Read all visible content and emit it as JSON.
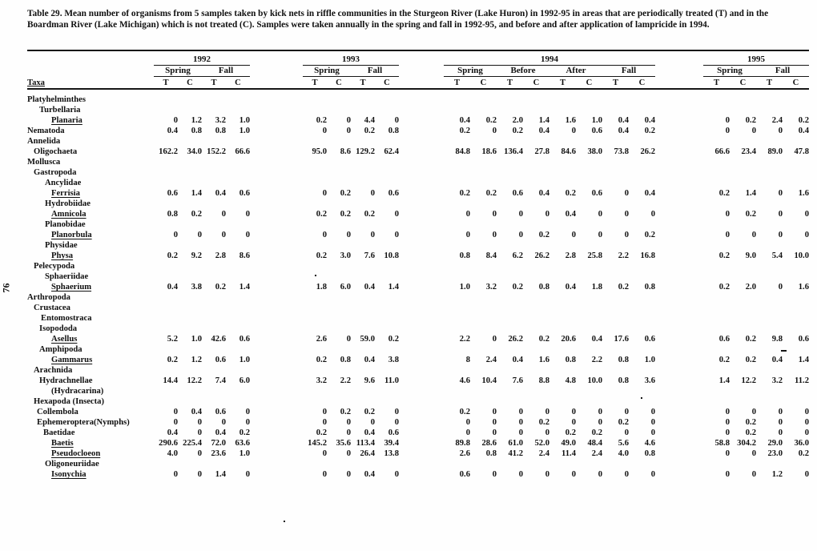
{
  "page_number": "76",
  "caption": {
    "line1": "Table 29.  Mean number of organisms from 5 samples taken by kick nets in riffle communities in the Sturgeon River (Lake Huron) in 1992-95 in areas that are periodically treated (T) and in the",
    "line2": "Boardman River (Lake Michigan) which is not treated (C).  Samples were taken annually in the spring and fall in 1992-95, and before and after application of lampricide in 1994."
  },
  "table": {
    "taxa_header": "Taxa",
    "treated_label": "T",
    "control_label": "C",
    "years": [
      {
        "label": "1992",
        "seasons": [
          "Spring",
          "Fall"
        ]
      },
      {
        "label": "1993",
        "seasons": [
          "Spring",
          "Fall"
        ]
      },
      {
        "label": "1994",
        "seasons": [
          "Spring",
          "Before",
          "After",
          "Fall"
        ]
      },
      {
        "label": "1995",
        "seasons": [
          "Spring",
          "Fall"
        ]
      }
    ],
    "rows": [
      {
        "label": "Platyhelminthes",
        "indent": 0,
        "underline": false,
        "values": null
      },
      {
        "label": "Turbellaria",
        "indent": 15,
        "underline": false,
        "values": null
      },
      {
        "label": "Planaria",
        "indent": 30,
        "underline": true,
        "values": [
          "0",
          "1.2",
          "3.2",
          "1.0",
          "0.2",
          "0",
          "4.4",
          "0",
          "0.4",
          "0.2",
          "2.0",
          "1.4",
          "1.6",
          "1.0",
          "0.4",
          "0.4",
          "0",
          "0.2",
          "2.4",
          "0.2"
        ]
      },
      {
        "label": "Nematoda",
        "indent": 0,
        "underline": false,
        "values": [
          "0.4",
          "0.8",
          "0.8",
          "1.0",
          "0",
          "0",
          "0.2",
          "0.8",
          "0.2",
          "0",
          "0.2",
          "0.4",
          "0",
          "0.6",
          "0.4",
          "0.2",
          "0",
          "0",
          "0",
          "0.4"
        ]
      },
      {
        "label": "Annelida",
        "indent": 0,
        "underline": false,
        "values": null
      },
      {
        "label": "Oligochaeta",
        "indent": 8,
        "underline": false,
        "values": [
          "162.2",
          "34.0",
          "152.2",
          "66.6",
          "95.0",
          "8.6",
          "129.2",
          "62.4",
          "84.8",
          "18.6",
          "136.4",
          "27.8",
          "84.6",
          "38.0",
          "73.8",
          "26.2",
          "66.6",
          "23.4",
          "89.0",
          "47.8"
        ]
      },
      {
        "label": "Mollusca",
        "indent": 0,
        "underline": false,
        "values": null
      },
      {
        "label": "Gastropoda",
        "indent": 8,
        "underline": false,
        "values": null
      },
      {
        "label": "Ancylidae",
        "indent": 22,
        "underline": false,
        "values": null
      },
      {
        "label": "Ferrisia",
        "indent": 30,
        "underline": true,
        "values": [
          "0.6",
          "1.4",
          "0.4",
          "0.6",
          "0",
          "0.2",
          "0",
          "0.6",
          "0.2",
          "0.2",
          "0.6",
          "0.4",
          "0.2",
          "0.6",
          "0",
          "0.4",
          "0.2",
          "1.4",
          "0",
          "1.6"
        ]
      },
      {
        "label": "Hydrobiidae",
        "indent": 22,
        "underline": false,
        "values": null
      },
      {
        "label": "Amnicola",
        "indent": 30,
        "underline": true,
        "values": [
          "0.8",
          "0.2",
          "0",
          "0",
          "0.2",
          "0.2",
          "0.2",
          "0",
          "0",
          "0",
          "0",
          "0",
          "0.4",
          "0",
          "0",
          "0",
          "0",
          "0.2",
          "0",
          "0"
        ]
      },
      {
        "label": "Planobidae",
        "indent": 22,
        "underline": false,
        "values": null
      },
      {
        "label": "Planorbula",
        "indent": 30,
        "underline": true,
        "values": [
          "0",
          "0",
          "0",
          "0",
          "0",
          "0",
          "0",
          "0",
          "0",
          "0",
          "0",
          "0.2",
          "0",
          "0",
          "0",
          "0.2",
          "0",
          "0",
          "0",
          "0"
        ]
      },
      {
        "label": "Physidae",
        "indent": 22,
        "underline": false,
        "values": null
      },
      {
        "label": "Physa",
        "indent": 30,
        "underline": true,
        "values": [
          "0.2",
          "9.2",
          "2.8",
          "8.6",
          "0.2",
          "3.0",
          "7.6",
          "10.8",
          "0.8",
          "8.4",
          "6.2",
          "26.2",
          "2.8",
          "25.8",
          "2.2",
          "16.8",
          "0.2",
          "9.0",
          "5.4",
          "10.0"
        ]
      },
      {
        "label": "Pelecypoda",
        "indent": 8,
        "underline": false,
        "values": null
      },
      {
        "label": "Sphaeriidae",
        "indent": 22,
        "underline": false,
        "values": null
      },
      {
        "label": "Sphaerium",
        "indent": 30,
        "underline": true,
        "values": [
          "0.4",
          "3.8",
          "0.2",
          "1.4",
          "1.8",
          "6.0",
          "0.4",
          "1.4",
          "1.0",
          "3.2",
          "0.2",
          "0.8",
          "0.4",
          "1.8",
          "0.2",
          "0.8",
          "0.2",
          "2.0",
          "0",
          "1.6"
        ]
      },
      {
        "label": "Arthropoda",
        "indent": 0,
        "underline": false,
        "values": null
      },
      {
        "label": "Crustacea",
        "indent": 8,
        "underline": false,
        "values": null
      },
      {
        "label": "Entomostraca",
        "indent": 17,
        "underline": false,
        "values": null
      },
      {
        "label": "Isopododa",
        "indent": 15,
        "underline": false,
        "values": null
      },
      {
        "label": "Asellus",
        "indent": 30,
        "underline": true,
        "values": [
          "5.2",
          "1.0",
          "42.6",
          "0.6",
          "2.6",
          "0",
          "59.0",
          "0.2",
          "2.2",
          "0",
          "26.2",
          "0.2",
          "20.6",
          "0.4",
          "17.6",
          "0.6",
          "0.6",
          "0.2",
          "9.8",
          "0.6"
        ]
      },
      {
        "label": "Amphipoda",
        "indent": 15,
        "underline": false,
        "values": null
      },
      {
        "label": "Gammarus",
        "indent": 30,
        "underline": true,
        "values": [
          "0.2",
          "1.2",
          "0.6",
          "1.0",
          "0.2",
          "0.8",
          "0.4",
          "3.8",
          "8",
          "2.4",
          "0.4",
          "1.6",
          "0.8",
          "2.2",
          "0.8",
          "1.0",
          "0.2",
          "0.2",
          "0.4",
          "1.4"
        ]
      },
      {
        "label": "Arachnida",
        "indent": 8,
        "underline": false,
        "values": null
      },
      {
        "label": "Hydrachnellae",
        "indent": 15,
        "underline": false,
        "values": [
          "14.4",
          "12.2",
          "7.4",
          "6.0",
          "3.2",
          "2.2",
          "9.6",
          "11.0",
          "4.6",
          "10.4",
          "7.6",
          "8.8",
          "4.8",
          "10.0",
          "0.8",
          "3.6",
          "1.4",
          "12.2",
          "3.2",
          "11.2"
        ]
      },
      {
        "label": "(Hydracarina)",
        "indent": 30,
        "underline": false,
        "values": null
      },
      {
        "label": "Hexapoda (Insecta)",
        "indent": 8,
        "underline": false,
        "values": null
      },
      {
        "label": "Collembola",
        "indent": 12,
        "underline": false,
        "values": [
          "0",
          "0.4",
          "0.6",
          "0",
          "0",
          "0.2",
          "0.2",
          "0",
          "0.2",
          "0",
          "0",
          "0",
          "0",
          "0",
          "0",
          "0",
          "0",
          "0",
          "0",
          "0"
        ]
      },
      {
        "label": "Ephemeroptera(Nymphs)",
        "indent": 12,
        "underline": false,
        "values": [
          "0",
          "0",
          "0",
          "0",
          "0",
          "0",
          "0",
          "0",
          "0",
          "0",
          "0",
          "0.2",
          "0",
          "0",
          "0.2",
          "0",
          "0",
          "0.2",
          "0",
          "0"
        ]
      },
      {
        "label": "Baetidae",
        "indent": 20,
        "underline": false,
        "values": [
          "0.4",
          "0",
          "0.4",
          "0.2",
          "0.2",
          "0",
          "0.4",
          "0.6",
          "0",
          "0",
          "0",
          "0",
          "0.2",
          "0.2",
          "0",
          "0",
          "0",
          "0.2",
          "0",
          "0"
        ]
      },
      {
        "label": "Baetis",
        "indent": 30,
        "underline": true,
        "values": [
          "290.6",
          "225.4",
          "72.0",
          "63.6",
          "145.2",
          "35.6",
          "113.4",
          "39.4",
          "89.8",
          "28.6",
          "61.0",
          "52.0",
          "49.0",
          "48.4",
          "5.6",
          "4.6",
          "58.8",
          "304.2",
          "29.0",
          "36.0"
        ]
      },
      {
        "label": "Pseudocloeon",
        "indent": 30,
        "underline": true,
        "values": [
          "4.0",
          "0",
          "23.6",
          "1.0",
          "0",
          "0",
          "26.4",
          "13.8",
          "2.6",
          "0.8",
          "41.2",
          "2.4",
          "11.4",
          "2.4",
          "4.0",
          "0.8",
          "0",
          "0",
          "23.0",
          "0.2"
        ]
      },
      {
        "label": "Oligoneuriidae",
        "indent": 22,
        "underline": false,
        "values": null
      },
      {
        "label": "Isonychia",
        "indent": 30,
        "underline": true,
        "values": [
          "0",
          "0",
          "1.4",
          "0",
          "0",
          "0",
          "0.4",
          "0",
          "0.6",
          "0",
          "0",
          "0",
          "0",
          "0",
          "0",
          "0",
          "0",
          "0",
          "1.2",
          "0"
        ]
      }
    ]
  }
}
